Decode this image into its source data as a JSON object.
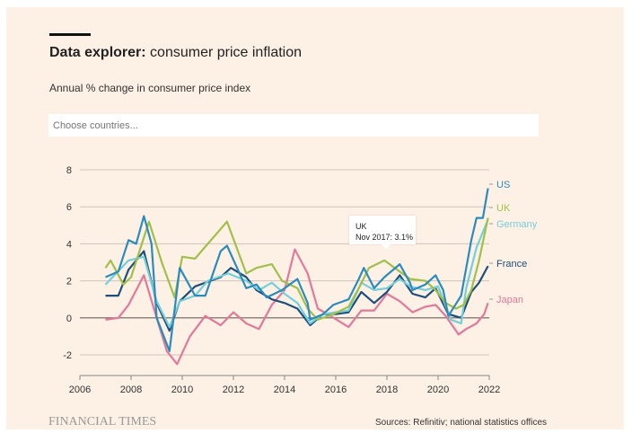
{
  "header": {
    "title_bold": "Data explorer:",
    "title_rest": " consumer price inflation",
    "subtitle": "Annual % change in consumer price index"
  },
  "search": {
    "placeholder": "Choose countries..."
  },
  "tooltip": {
    "series": "UK",
    "text": "Nov 2017: 3.1%"
  },
  "footer": {
    "logo": "FINANCIAL TIMES",
    "sources": "Sources: Refinitiv; national statistics offices"
  },
  "chart_data": {
    "type": "line",
    "title": "",
    "xlabel": "",
    "ylabel": "",
    "xlim": [
      2006,
      2022
    ],
    "ylim": [
      -2,
      8
    ],
    "xticks": [
      "2006",
      "2008",
      "2010",
      "2012",
      "2014",
      "2016",
      "2018",
      "2020",
      "2022"
    ],
    "yticks": [
      "8",
      "6",
      "4",
      "2",
      "0",
      "-2"
    ],
    "grid": true,
    "legend": "right-end labels",
    "series": [
      {
        "name": "US",
        "color": "#2b8bbd",
        "points": [
          [
            2007,
            2.2
          ],
          [
            2007.5,
            2.5
          ],
          [
            2007.9,
            4.2
          ],
          [
            2008.2,
            4.0
          ],
          [
            2008.5,
            5.5
          ],
          [
            2008.8,
            4.0
          ],
          [
            2009.0,
            0.0
          ],
          [
            2009.5,
            -1.8
          ],
          [
            2009.9,
            2.7
          ],
          [
            2010.5,
            1.2
          ],
          [
            2010.9,
            1.2
          ],
          [
            2011.5,
            3.6
          ],
          [
            2011.75,
            3.9
          ],
          [
            2012.5,
            1.6
          ],
          [
            2012.9,
            1.8
          ],
          [
            2013.3,
            1.1
          ],
          [
            2013.9,
            1.5
          ],
          [
            2014.5,
            2.1
          ],
          [
            2014.9,
            0.8
          ],
          [
            2015.0,
            -0.1
          ],
          [
            2015.5,
            0.2
          ],
          [
            2015.9,
            0.7
          ],
          [
            2016.5,
            1.0
          ],
          [
            2016.9,
            2.1
          ],
          [
            2017.1,
            2.7
          ],
          [
            2017.5,
            1.6
          ],
          [
            2017.9,
            2.2
          ],
          [
            2018.5,
            2.9
          ],
          [
            2018.9,
            1.9
          ],
          [
            2019.0,
            1.5
          ],
          [
            2019.5,
            1.8
          ],
          [
            2019.9,
            2.3
          ],
          [
            2020.2,
            1.5
          ],
          [
            2020.4,
            0.1
          ],
          [
            2020.9,
            1.2
          ],
          [
            2021.3,
            4.2
          ],
          [
            2021.5,
            5.4
          ],
          [
            2021.75,
            5.4
          ],
          [
            2021.95,
            7.0
          ]
        ]
      },
      {
        "name": "UK",
        "color": "#a1bf4a",
        "points": [
          [
            2007,
            2.7
          ],
          [
            2007.2,
            3.1
          ],
          [
            2007.7,
            1.8
          ],
          [
            2008,
            2.2
          ],
          [
            2008.7,
            5.2
          ],
          [
            2009.2,
            3.0
          ],
          [
            2009.7,
            1.1
          ],
          [
            2010,
            3.3
          ],
          [
            2010.5,
            3.2
          ],
          [
            2011,
            4.0
          ],
          [
            2011.75,
            5.2
          ],
          [
            2012.5,
            2.4
          ],
          [
            2012.9,
            2.7
          ],
          [
            2013.5,
            2.9
          ],
          [
            2013.9,
            2.0
          ],
          [
            2014.5,
            1.6
          ],
          [
            2014.9,
            0.5
          ],
          [
            2015.3,
            -0.1
          ],
          [
            2015.9,
            0.2
          ],
          [
            2016.5,
            0.6
          ],
          [
            2016.9,
            1.6
          ],
          [
            2017.3,
            2.7
          ],
          [
            2017.9,
            3.1
          ],
          [
            2018.5,
            2.5
          ],
          [
            2018.9,
            2.1
          ],
          [
            2019.5,
            2.0
          ],
          [
            2019.9,
            1.5
          ],
          [
            2020.3,
            0.8
          ],
          [
            2020.7,
            0.5
          ],
          [
            2021.0,
            0.7
          ],
          [
            2021.3,
            1.5
          ],
          [
            2021.6,
            3.1
          ],
          [
            2021.95,
            5.4
          ]
        ]
      },
      {
        "name": "Germany",
        "color": "#74cfdc",
        "points": [
          [
            2007,
            1.8
          ],
          [
            2007.9,
            3.1
          ],
          [
            2008.5,
            3.3
          ],
          [
            2009.0,
            0.9
          ],
          [
            2009.5,
            -0.5
          ],
          [
            2009.9,
            0.9
          ],
          [
            2010.5,
            1.2
          ],
          [
            2011,
            2.0
          ],
          [
            2011.8,
            2.4
          ],
          [
            2012.5,
            2.0
          ],
          [
            2013,
            1.5
          ],
          [
            2013.5,
            1.9
          ],
          [
            2014,
            1.3
          ],
          [
            2014.5,
            0.8
          ],
          [
            2015,
            -0.3
          ],
          [
            2015.5,
            0.2
          ],
          [
            2016,
            0.3
          ],
          [
            2016.5,
            0.4
          ],
          [
            2017,
            1.9
          ],
          [
            2017.5,
            1.5
          ],
          [
            2018,
            1.6
          ],
          [
            2018.5,
            2.1
          ],
          [
            2018.9,
            1.7
          ],
          [
            2019.5,
            1.5
          ],
          [
            2020.0,
            1.7
          ],
          [
            2020.5,
            -0.1
          ],
          [
            2020.9,
            -0.3
          ],
          [
            2021.1,
            1.6
          ],
          [
            2021.5,
            3.8
          ],
          [
            2021.95,
            5.3
          ]
        ]
      },
      {
        "name": "France",
        "color": "#1d4f7c",
        "points": [
          [
            2007,
            1.2
          ],
          [
            2007.5,
            1.2
          ],
          [
            2007.9,
            2.6
          ],
          [
            2008.5,
            3.6
          ],
          [
            2009,
            0.8
          ],
          [
            2009.5,
            -0.7
          ],
          [
            2009.9,
            0.9
          ],
          [
            2010.5,
            1.7
          ],
          [
            2011.5,
            2.2
          ],
          [
            2011.9,
            2.7
          ],
          [
            2012.5,
            2.2
          ],
          [
            2012.9,
            1.5
          ],
          [
            2013.5,
            1.0
          ],
          [
            2014,
            0.8
          ],
          [
            2014.5,
            0.5
          ],
          [
            2015,
            -0.4
          ],
          [
            2015.5,
            0.2
          ],
          [
            2016,
            0.2
          ],
          [
            2016.5,
            0.3
          ],
          [
            2017,
            1.4
          ],
          [
            2017.5,
            0.8
          ],
          [
            2018,
            1.4
          ],
          [
            2018.5,
            2.3
          ],
          [
            2019,
            1.3
          ],
          [
            2019.5,
            1.1
          ],
          [
            2019.9,
            1.6
          ],
          [
            2020.4,
            0.2
          ],
          [
            2020.9,
            0.0
          ],
          [
            2021.3,
            1.4
          ],
          [
            2021.6,
            1.9
          ],
          [
            2021.95,
            2.8
          ]
        ]
      },
      {
        "name": "Japan",
        "color": "#e2789a",
        "points": [
          [
            2007,
            -0.1
          ],
          [
            2007.5,
            0.0
          ],
          [
            2007.9,
            0.7
          ],
          [
            2008.5,
            2.3
          ],
          [
            2009,
            0.0
          ],
          [
            2009.4,
            -1.8
          ],
          [
            2009.8,
            -2.5
          ],
          [
            2010.3,
            -1.0
          ],
          [
            2010.9,
            0.1
          ],
          [
            2011.5,
            -0.4
          ],
          [
            2012,
            0.3
          ],
          [
            2012.5,
            -0.3
          ],
          [
            2013,
            -0.6
          ],
          [
            2013.5,
            0.7
          ],
          [
            2014,
            1.5
          ],
          [
            2014.4,
            3.7
          ],
          [
            2014.9,
            2.4
          ],
          [
            2015.3,
            0.5
          ],
          [
            2015.8,
            0.1
          ],
          [
            2016.5,
            -0.5
          ],
          [
            2017,
            0.4
          ],
          [
            2017.5,
            0.4
          ],
          [
            2018,
            1.3
          ],
          [
            2018.5,
            0.9
          ],
          [
            2019,
            0.3
          ],
          [
            2019.5,
            0.6
          ],
          [
            2019.9,
            0.7
          ],
          [
            2020.3,
            0.1
          ],
          [
            2020.8,
            -0.9
          ],
          [
            2021.1,
            -0.6
          ],
          [
            2021.5,
            -0.3
          ],
          [
            2021.8,
            0.2
          ],
          [
            2021.95,
            0.8
          ]
        ]
      }
    ]
  }
}
